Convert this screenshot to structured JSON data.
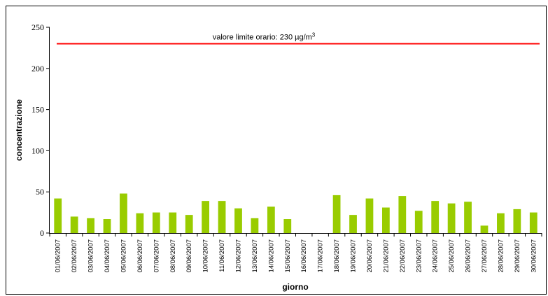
{
  "chart_data": {
    "type": "bar",
    "xlabel": "giorno",
    "ylabel": "concentrazione",
    "ylim": [
      0,
      250
    ],
    "yticks": [
      0,
      50,
      100,
      150,
      200,
      250
    ],
    "grid": false,
    "legend": "none",
    "categories": [
      "01/06/2007",
      "02/06/2007",
      "03/06/2007",
      "04/06/2007",
      "05/06/2007",
      "06/06/2007",
      "07/06/2007",
      "08/06/2007",
      "09/06/2007",
      "10/06/2007",
      "11/06/2007",
      "12/06/2007",
      "13/06/2007",
      "14/06/2007",
      "15/06/2007",
      "16/06/2007",
      "17/06/2007",
      "18/06/2007",
      "19/06/2007",
      "20/06/2007",
      "21/06/2007",
      "22/06/2007",
      "23/06/2007",
      "24/06/2007",
      "25/06/2007",
      "26/06/2007",
      "27/06/2007",
      "28/06/2007",
      "29/06/2007",
      "30/06/2007"
    ],
    "values": [
      42,
      20,
      18,
      17,
      48,
      24,
      25,
      25,
      22,
      39,
      39,
      30,
      18,
      32,
      17,
      0,
      0,
      46,
      22,
      42,
      31,
      45,
      27,
      39,
      36,
      38,
      9,
      24,
      29,
      25
    ],
    "bar_color": "#99cc00",
    "reference_line": {
      "value": 230,
      "label_prefix": "valore limite orario: 230 µg/m",
      "label_superscript": "3",
      "color": "#ff0000"
    }
  }
}
